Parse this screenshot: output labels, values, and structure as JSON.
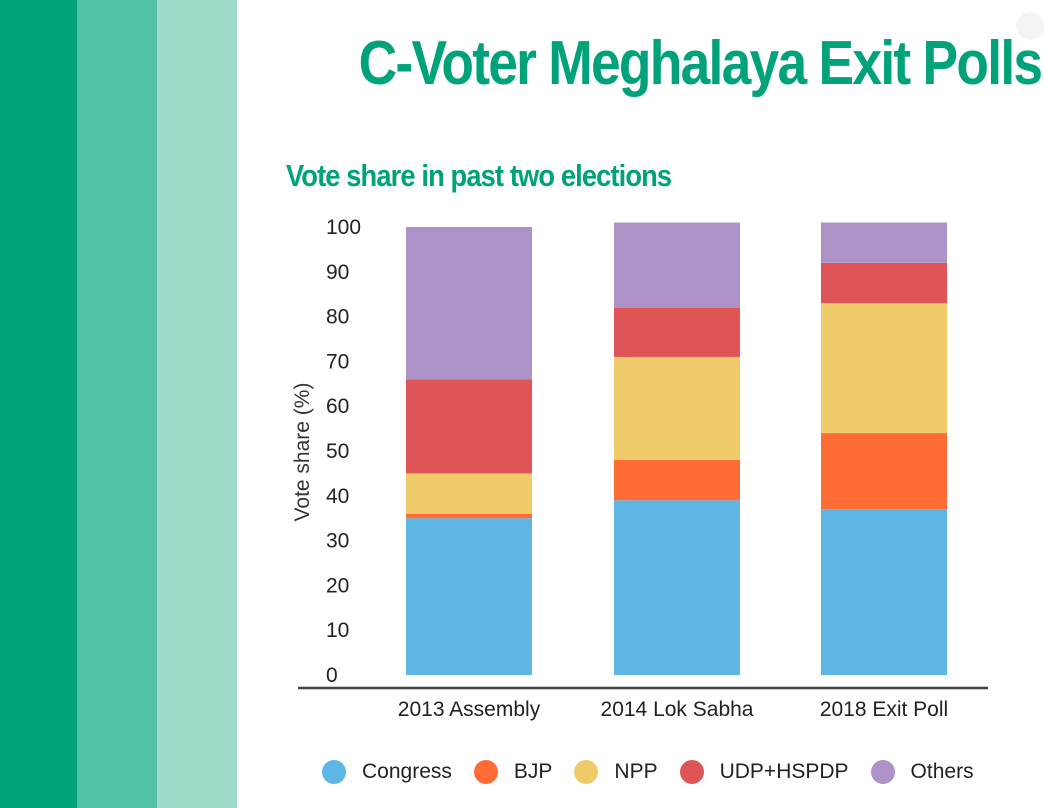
{
  "title": "C-Voter Meghalaya Exit Polls",
  "colors": {
    "title": "#00A27A",
    "stripes": [
      "#00A27A",
      "#52C2A4",
      "#9EDCC9"
    ],
    "axis": "#444444"
  },
  "chart_data": {
    "type": "bar",
    "stacked": true,
    "title": "Vote share in past two elections",
    "xlabel": "",
    "ylabel": "Vote share (%)",
    "ylim": [
      0,
      100
    ],
    "yticks": [
      0,
      10,
      20,
      30,
      40,
      50,
      60,
      70,
      80,
      90,
      100
    ],
    "grid": false,
    "legend_position": "bottom",
    "categories": [
      "2013 Assembly",
      "2014 Lok Sabha",
      "2018 Exit Poll"
    ],
    "series": [
      {
        "name": "Congress",
        "color": "#5EB6E4",
        "values": [
          35,
          39,
          37
        ]
      },
      {
        "name": "BJP",
        "color": "#FF6B35",
        "values": [
          1,
          9,
          17
        ]
      },
      {
        "name": "NPP",
        "color": "#F0CB6A",
        "values": [
          9,
          23,
          29
        ]
      },
      {
        "name": "UDP+HSPDP",
        "color": "#DF5454",
        "values": [
          21,
          11,
          9
        ]
      },
      {
        "name": "Others",
        "color": "#AC92C7",
        "values": [
          34,
          19,
          9
        ]
      }
    ]
  }
}
